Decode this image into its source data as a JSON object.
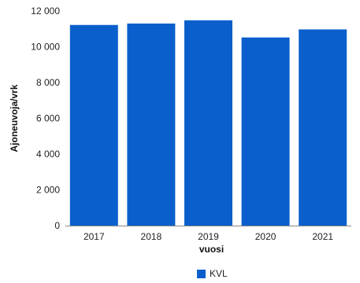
{
  "chart_data": {
    "type": "bar",
    "categories": [
      "2017",
      "2018",
      "2019",
      "2020",
      "2021"
    ],
    "series": [
      {
        "name": "KVL",
        "values": [
          11220,
          11300,
          11480,
          10520,
          10970
        ]
      }
    ],
    "title": "",
    "xlabel": "vuosi",
    "ylabel": "Ajoneuvoja/vrk",
    "ylim": [
      0,
      12000
    ],
    "yticks": [
      0,
      2000,
      4000,
      6000,
      8000,
      10000,
      12000
    ],
    "ytick_labels": [
      "0",
      "2 000",
      "4 000",
      "6 000",
      "8 000",
      "10 000",
      "12 000"
    ],
    "grid": false,
    "legend": "bottom",
    "colors": {
      "bar": "#0a5fcc",
      "axis": "#888888"
    }
  }
}
